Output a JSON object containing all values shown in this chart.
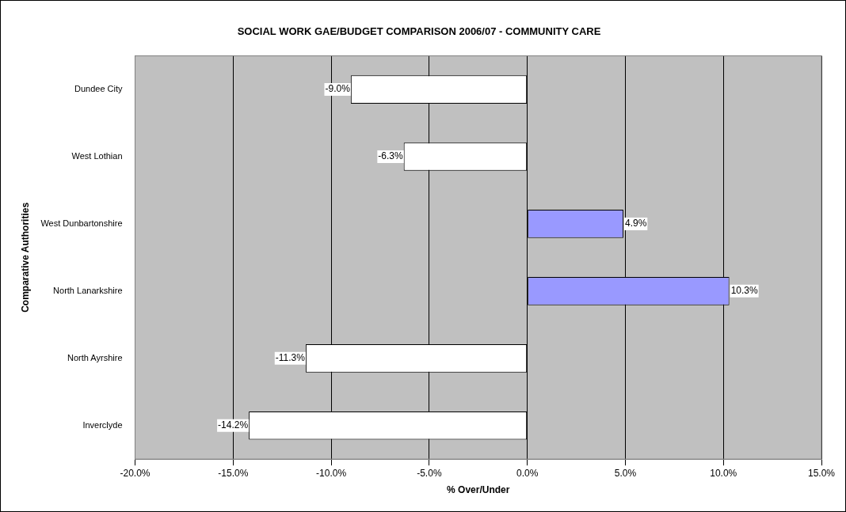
{
  "chart_data": {
    "type": "bar",
    "orientation": "horizontal",
    "title": "SOCIAL WORK GAE/BUDGET COMPARISON 2006/07 - COMMUNITY CARE",
    "xlabel": "% Over/Under",
    "ylabel": "Comparative Authorities",
    "categories": [
      "Dundee City",
      "West Lothian",
      "West Dunbartonshire",
      "North Lanarkshire",
      "North Ayrshire",
      "Inverclyde"
    ],
    "values": [
      -9.0,
      -6.3,
      4.9,
      10.3,
      -11.3,
      -14.2
    ],
    "colors": [
      "#ffffff",
      "#ffffff",
      "#9999ff",
      "#9999ff",
      "#ffffff",
      "#ffffff"
    ],
    "value_labels": [
      "-9.0%",
      "-6.3%",
      "4.9%",
      "10.3%",
      "-11.3%",
      "-14.2%"
    ],
    "xlim": [
      -20,
      15
    ],
    "xticks": [
      {
        "value": -20,
        "label": "-20.0%"
      },
      {
        "value": -15,
        "label": "-15.0%"
      },
      {
        "value": -10,
        "label": "-10.0%"
      },
      {
        "value": -5,
        "label": "-5.0%"
      },
      {
        "value": 0,
        "label": "0.0%"
      },
      {
        "value": 5,
        "label": "5.0%"
      },
      {
        "value": 10,
        "label": "10.0%"
      },
      {
        "value": 15,
        "label": "15.0%"
      }
    ],
    "grid": "x",
    "legend": false
  }
}
